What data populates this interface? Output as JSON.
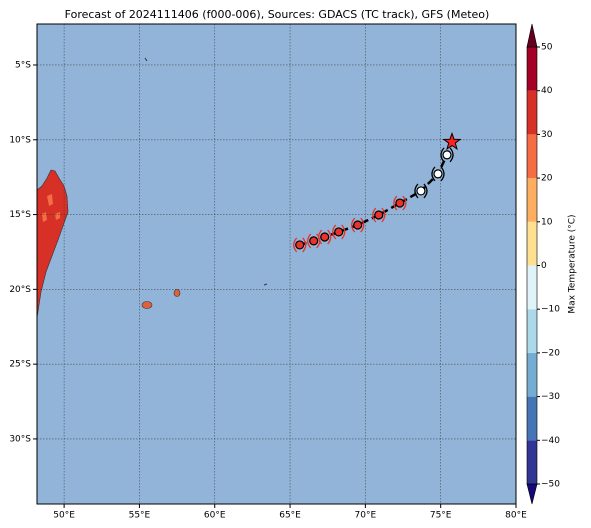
{
  "chart_data": {
    "type": "map",
    "title": "Forecast of 2024111406 (f000-006), Sources: GDACS (TC track), GFS (Meteo)",
    "xlim": [
      48.2,
      80
    ],
    "ylim": [
      -34.35,
      -2.26
    ],
    "xticks": [
      {
        "value": 50,
        "label": "50°E"
      },
      {
        "value": 55,
        "label": "55°E"
      },
      {
        "value": 60,
        "label": "60°E"
      },
      {
        "value": 65,
        "label": "65°E"
      },
      {
        "value": 70,
        "label": "70°E"
      },
      {
        "value": 75,
        "label": "75°E"
      },
      {
        "value": 80,
        "label": "80°E"
      }
    ],
    "yticks": [
      {
        "value": -5,
        "label": "5°S"
      },
      {
        "value": -10,
        "label": "10°S"
      },
      {
        "value": -15,
        "label": "15°S"
      },
      {
        "value": -20,
        "label": "20°S"
      },
      {
        "value": -25,
        "label": "25°S"
      },
      {
        "value": -30,
        "label": "30°S"
      }
    ],
    "grid": true,
    "ocean_color": "#92b4d8",
    "track": {
      "lon": [
        65.64,
        66.57,
        67.3,
        68.23,
        69.49,
        70.89,
        72.29,
        73.69,
        74.82,
        75.42,
        75.75
      ],
      "lat": [
        -17.03,
        -16.76,
        -16.5,
        -16.16,
        -15.7,
        -15.03,
        -14.23,
        -13.42,
        -12.28,
        -11.01,
        -10.15
      ],
      "colors": [
        "#e8322a",
        "#e8322a",
        "#e8322a",
        "#e8322a",
        "#e8322a",
        "#e8322a",
        "#e8322a",
        "#ffffff",
        "#ffffff",
        "#ffffff",
        "#ff2020"
      ]
    },
    "colorbar": {
      "label": "Max Temperature (°C)",
      "ticks": [
        {
          "value": -50,
          "label": "−50"
        },
        {
          "value": -40,
          "label": "−40"
        },
        {
          "value": -30,
          "label": "−30"
        },
        {
          "value": -20,
          "label": "−20"
        },
        {
          "value": -10,
          "label": "−10"
        },
        0,
        10,
        20,
        30,
        40,
        50
      ],
      "colors": [
        "#313695",
        "#4575b4",
        "#74add1",
        "#abd9e9",
        "#e0f3f8",
        "#fee090",
        "#fdae61",
        "#f46d43",
        "#d73027",
        "#a50026"
      ],
      "under": "#16097a",
      "over": "#67001f"
    }
  }
}
